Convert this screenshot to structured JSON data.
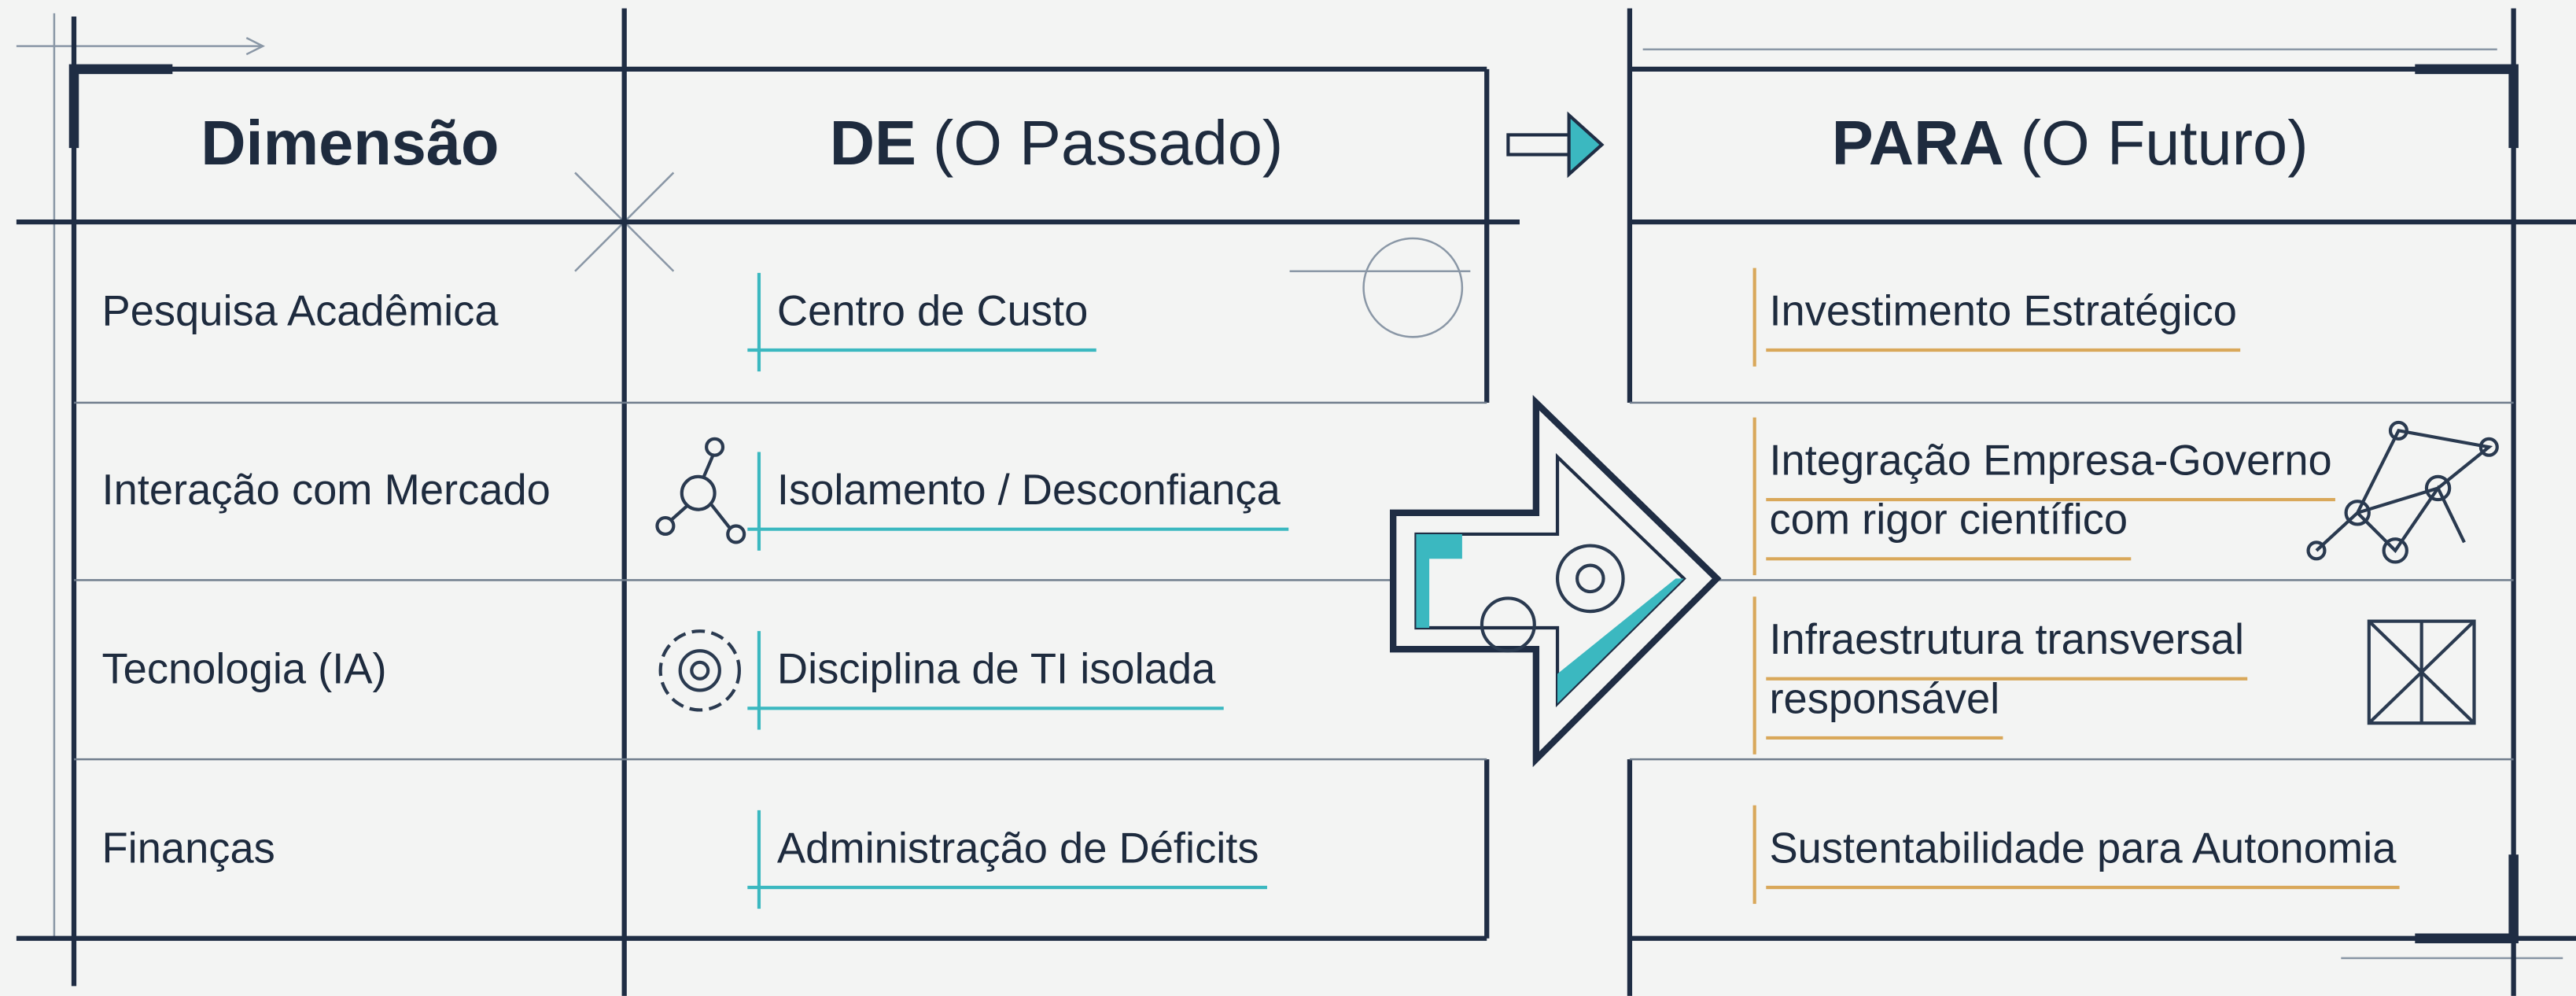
{
  "headers": {
    "dimension": "Dimensão",
    "from": {
      "bold": "DE",
      "rest": "(O Passado)"
    },
    "to": {
      "bold": "PARA",
      "rest": "(O Futuro)"
    }
  },
  "rows": [
    {
      "dimension": "Pesquisa Acadêmica",
      "from": "Centro de Custo",
      "to": [
        "Investimento Estratégico"
      ]
    },
    {
      "dimension": "Interação com Mercado",
      "from": "Isolamento / Desconfiança",
      "to": [
        "Integração Empresa-Governo",
        "com rigor científico"
      ]
    },
    {
      "dimension": "Tecnologia (IA)",
      "from": "Disciplina de TI isolada",
      "to": [
        "Infraestrutura transversal",
        "responsável"
      ]
    },
    {
      "dimension": "Finanças",
      "from": "Administração de Déficits",
      "to": [
        "Sustentabilidade para Autonomia"
      ]
    }
  ]
}
